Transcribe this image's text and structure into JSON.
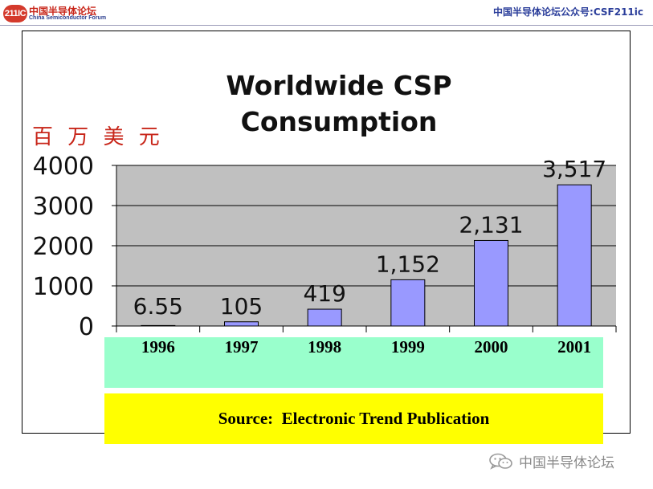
{
  "header": {
    "logo_badge": "211IC",
    "logo_cn": "中国半导体论坛",
    "logo_en": "China Semiconductor Forum",
    "right_text": "中国半导体论坛公众号:CSF211ic"
  },
  "chart_data": {
    "type": "bar",
    "title_line1": "Worldwide CSP",
    "title_line2": "Consumption",
    "ylabel": "百 万 美 元",
    "categories": [
      "1996",
      "1997",
      "1998",
      "1999",
      "2000",
      "2001"
    ],
    "values": [
      6.55,
      105,
      419,
      1152,
      2131,
      3517
    ],
    "data_labels": [
      "6.55",
      "105",
      "419",
      "1,152",
      "2,131",
      "3,517"
    ],
    "ylim": [
      0,
      4000
    ],
    "yticks": [
      "0",
      "1000",
      "2000",
      "3000",
      "4000"
    ],
    "ytick_values": [
      0,
      1000,
      2000,
      3000,
      4000
    ],
    "grid": true,
    "colors": {
      "bar": "#9999ff",
      "plot_bg": "#c0c0c0",
      "category_band": "#99ffcc",
      "source_band": "#ffff00"
    }
  },
  "source": "Source:  Electronic Trend Publication",
  "watermark": {
    "text": "中国半导体论坛",
    "icon": "wechat-icon"
  }
}
